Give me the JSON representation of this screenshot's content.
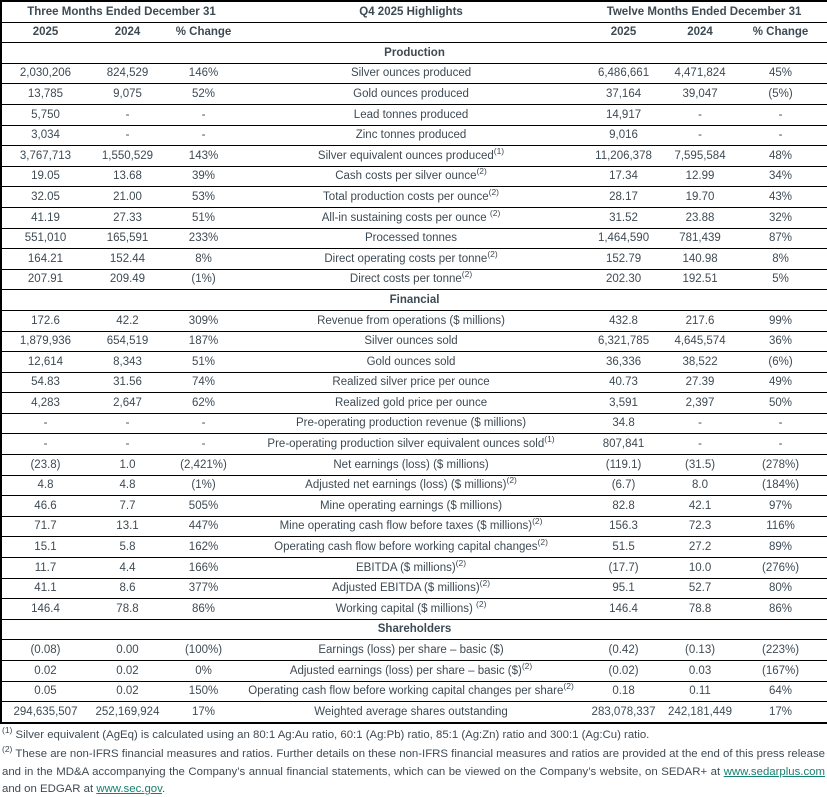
{
  "colors": {
    "text": "#3E4A53",
    "border": "#000000",
    "link": "#178070",
    "background": "#ffffff"
  },
  "table": {
    "header": {
      "three_months": "Three Months Ended December 31",
      "highlights": "Q4 2025 Highlights",
      "twelve_months": "Twelve Months Ended December 31",
      "subcolumns": [
        "2025",
        "2024",
        "% Change"
      ]
    },
    "sections": [
      {
        "title": "Production",
        "rows": [
          {
            "three_months": [
              "2,030,206",
              "824,529",
              "146%"
            ],
            "label": "Silver ounces produced",
            "footnote_marker": "",
            "twelve_months": [
              "6,486,661",
              "4,471,824",
              "45%"
            ]
          },
          {
            "three_months": [
              "13,785",
              "9,075",
              "52%"
            ],
            "label": "Gold ounces produced",
            "footnote_marker": "",
            "twelve_months": [
              "37,164",
              "39,047",
              "(5%)"
            ]
          },
          {
            "three_months": [
              "5,750",
              "-",
              "-"
            ],
            "label": "Lead tonnes produced",
            "footnote_marker": "",
            "twelve_months": [
              "14,917",
              "-",
              "-"
            ]
          },
          {
            "three_months": [
              "3,034",
              "-",
              "-"
            ],
            "label": "Zinc tonnes produced",
            "footnote_marker": "",
            "twelve_months": [
              "9,016",
              "-",
              "-"
            ]
          },
          {
            "three_months": [
              "3,767,713",
              "1,550,529",
              "143%"
            ],
            "label": "Silver equivalent ounces produced",
            "footnote_marker": "(1)",
            "twelve_months": [
              "11,206,378",
              "7,595,584",
              "48%"
            ]
          },
          {
            "three_months": [
              "19.05",
              "13.68",
              "39%"
            ],
            "label": "Cash costs per silver ounce",
            "footnote_marker": "(2)",
            "twelve_months": [
              "17.34",
              "12.99",
              "34%"
            ]
          },
          {
            "three_months": [
              "32.05",
              "21.00",
              "53%"
            ],
            "label": "Total production costs per ounce",
            "footnote_marker": "(2)",
            "twelve_months": [
              "28.17",
              "19.70",
              "43%"
            ]
          },
          {
            "three_months": [
              "41.19",
              "27.33",
              "51%"
            ],
            "label": "All-in sustaining costs per ounce ",
            "footnote_marker": "(2)",
            "twelve_months": [
              "31.52",
              "23.88",
              "32%"
            ]
          },
          {
            "three_months": [
              "551,010",
              "165,591",
              "233%"
            ],
            "label": "Processed tonnes",
            "footnote_marker": "",
            "twelve_months": [
              "1,464,590",
              "781,439",
              "87%"
            ]
          },
          {
            "three_months": [
              "164.21",
              "152.44",
              "8%"
            ],
            "label": "Direct operating costs per tonne",
            "footnote_marker": "(2)",
            "twelve_months": [
              "152.79",
              "140.98",
              "8%"
            ]
          },
          {
            "three_months": [
              "207.91",
              "209.49",
              "(1%)"
            ],
            "label": "Direct costs per tonne",
            "footnote_marker": "(2)",
            "twelve_months": [
              "202.30",
              "192.51",
              "5%"
            ]
          }
        ]
      },
      {
        "title": "Financial",
        "rows": [
          {
            "three_months": [
              "172.6",
              "42.2",
              "309%"
            ],
            "label": "Revenue from operations ($ millions)",
            "footnote_marker": "",
            "twelve_months": [
              "432.8",
              "217.6",
              "99%"
            ]
          },
          {
            "three_months": [
              "1,879,936",
              "654,519",
              "187%"
            ],
            "label": "Silver ounces sold",
            "footnote_marker": "",
            "twelve_months": [
              "6,321,785",
              "4,645,574",
              "36%"
            ]
          },
          {
            "three_months": [
              "12,614",
              "8,343",
              "51%"
            ],
            "label": "Gold ounces sold",
            "footnote_marker": "",
            "twelve_months": [
              "36,336",
              "38,522",
              "(6%)"
            ]
          },
          {
            "three_months": [
              "54.83",
              "31.56",
              "74%"
            ],
            "label": "Realized silver price per ounce",
            "footnote_marker": "",
            "twelve_months": [
              "40.73",
              "27.39",
              "49%"
            ]
          },
          {
            "three_months": [
              "4,283",
              "2,647",
              "62%"
            ],
            "label": "Realized gold price per ounce",
            "footnote_marker": "",
            "twelve_months": [
              "3,591",
              "2,397",
              "50%"
            ]
          },
          {
            "three_months": [
              "-",
              "-",
              "-"
            ],
            "label": "Pre-operating production revenue ($ millions)",
            "footnote_marker": "",
            "twelve_months": [
              "34.8",
              "-",
              "-"
            ]
          },
          {
            "three_months": [
              "-",
              "-",
              "-"
            ],
            "label": "Pre-operating production silver equivalent ounces sold",
            "footnote_marker": "(1)",
            "twelve_months": [
              "807,841",
              "-",
              "-"
            ]
          },
          {
            "three_months": [
              "(23.8)",
              "1.0",
              "(2,421%)"
            ],
            "label": "Net earnings (loss) ($ millions)",
            "footnote_marker": "",
            "twelve_months": [
              "(119.1)",
              "(31.5)",
              "(278%)"
            ]
          },
          {
            "three_months": [
              "4.8",
              "4.8",
              "(1%)"
            ],
            "label": "Adjusted net earnings (loss) ($ millions)",
            "footnote_marker": "(2)",
            "twelve_months": [
              "(6.7)",
              "8.0",
              "(184%)"
            ]
          },
          {
            "three_months": [
              "46.6",
              "7.7",
              "505%"
            ],
            "label": "Mine operating earnings ($ millions)",
            "footnote_marker": "",
            "twelve_months": [
              "82.8",
              "42.1",
              "97%"
            ]
          },
          {
            "three_months": [
              "71.7",
              "13.1",
              "447%"
            ],
            "label": "Mine operating cash flow before taxes ($ millions)",
            "footnote_marker": "(2)",
            "twelve_months": [
              "156.3",
              "72.3",
              "116%"
            ]
          },
          {
            "three_months": [
              "15.1",
              "5.8",
              "162%"
            ],
            "label": "Operating cash flow before working capital changes",
            "footnote_marker": "(2)",
            "twelve_months": [
              "51.5",
              "27.2",
              "89%"
            ]
          },
          {
            "three_months": [
              "11.7",
              "4.4",
              "166%"
            ],
            "label": "EBITDA ($ millions)",
            "footnote_marker": "(2)",
            "twelve_months": [
              "(17.7)",
              "10.0",
              "(276%)"
            ]
          },
          {
            "three_months": [
              "41.1",
              "8.6",
              "377%"
            ],
            "label": "Adjusted EBITDA ($ millions)",
            "footnote_marker": "(2)",
            "twelve_months": [
              "95.1",
              "52.7",
              "80%"
            ]
          },
          {
            "three_months": [
              "146.4",
              "78.8",
              "86%"
            ],
            "label": "Working capital ($ millions) ",
            "footnote_marker": "(2)",
            "twelve_months": [
              "146.4",
              "78.8",
              "86%"
            ]
          }
        ]
      },
      {
        "title": "Shareholders",
        "rows": [
          {
            "three_months": [
              "(0.08)",
              "0.00",
              "(100%)"
            ],
            "label": "Earnings (loss) per share – basic ($)",
            "footnote_marker": "",
            "twelve_months": [
              "(0.42)",
              "(0.13)",
              "(223%)"
            ]
          },
          {
            "three_months": [
              "0.02",
              "0.02",
              "0%"
            ],
            "label": "Adjusted earnings (loss) per share – basic ($)",
            "footnote_marker": "(2)",
            "twelve_months": [
              "(0.02)",
              "0.03",
              "(167%)"
            ]
          },
          {
            "three_months": [
              "0.05",
              "0.02",
              "150%"
            ],
            "label": "Operating cash flow before working capital changes per share",
            "footnote_marker": "(2)",
            "twelve_months": [
              "0.18",
              "0.11",
              "64%"
            ]
          },
          {
            "three_months": [
              "294,635,507",
              "252,169,924",
              "17%"
            ],
            "label": "Weighted average shares outstanding",
            "footnote_marker": "",
            "twelve_months": [
              "283,078,337",
              "242,181,449",
              "17%"
            ]
          }
        ]
      }
    ]
  },
  "footnotes": {
    "note1": {
      "marker": "(1)",
      "text": " Silver equivalent (AgEq) is calculated using an 80:1 Ag:Au ratio, 60:1 (Ag:Pb) ratio, 85:1 (Ag:Zn) ratio and 300:1 (Ag:Cu) ratio."
    },
    "note2": {
      "marker": "(2)",
      "text_before": " These are non-IFRS financial measures and ratios. Further details on these non-IFRS financial measures and ratios are provided at the end of this press release and in the MD&A accompanying the Company’s annual financial statements, which can be viewed on the Company’s website, on SEDAR+ at ",
      "link1": "www.sedarplus.com",
      "text_middle": " and on EDGAR at ",
      "link2": "www.sec.gov",
      "text_after": "."
    }
  }
}
